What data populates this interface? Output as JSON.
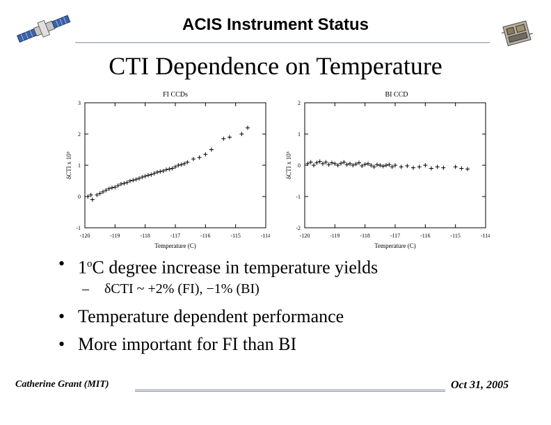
{
  "header": {
    "title": "ACIS Instrument Status"
  },
  "slide": {
    "title": "CTI Dependence on Temperature"
  },
  "chart_data": [
    {
      "type": "scatter",
      "title": "FI CCDs",
      "xlabel": "Temperature (C)",
      "ylabel": "δCTI x 10⁵",
      "xlim": [
        -120,
        -114
      ],
      "ylim": [
        -1,
        3
      ],
      "xticks": [
        "-120",
        "-119",
        "-118",
        "-117",
        "-116",
        "-115",
        "-114"
      ],
      "yticks": [
        "-1",
        "0",
        "1",
        "2",
        "3"
      ],
      "x": [
        -119.9,
        -119.8,
        -119.75,
        -119.6,
        -119.5,
        -119.4,
        -119.3,
        -119.2,
        -119.1,
        -119.0,
        -118.9,
        -118.8,
        -118.7,
        -118.6,
        -118.5,
        -118.4,
        -118.3,
        -118.2,
        -118.1,
        -118.0,
        -117.9,
        -117.8,
        -117.7,
        -117.6,
        -117.5,
        -117.4,
        -117.3,
        -117.2,
        -117.1,
        -117.0,
        -116.9,
        -116.8,
        -116.7,
        -116.6,
        -116.4,
        -116.2,
        -116.0,
        -115.8,
        -115.4,
        -115.2,
        -114.8,
        -114.6
      ],
      "y": [
        0.0,
        0.05,
        -0.1,
        0.05,
        0.1,
        0.15,
        0.2,
        0.25,
        0.28,
        0.3,
        0.35,
        0.4,
        0.42,
        0.45,
        0.5,
        0.52,
        0.55,
        0.58,
        0.62,
        0.65,
        0.68,
        0.7,
        0.74,
        0.78,
        0.8,
        0.82,
        0.86,
        0.88,
        0.9,
        0.95,
        1.0,
        1.02,
        1.05,
        1.1,
        1.2,
        1.25,
        1.35,
        1.5,
        1.85,
        1.9,
        2.0,
        2.2
      ]
    },
    {
      "type": "scatter",
      "title": "BI CCD",
      "xlabel": "Temperature (C)",
      "ylabel": "δCTI x 10⁵",
      "xlim": [
        -120,
        -114
      ],
      "ylim": [
        -2,
        2
      ],
      "xticks": [
        "-120",
        "-119",
        "-118",
        "-117",
        "-116",
        "-115",
        "-114"
      ],
      "yticks": [
        "-2",
        "-1",
        "0",
        "1",
        "2"
      ],
      "x": [
        -119.9,
        -119.8,
        -119.7,
        -119.6,
        -119.5,
        -119.4,
        -119.3,
        -119.2,
        -119.1,
        -119.0,
        -118.9,
        -118.8,
        -118.7,
        -118.6,
        -118.5,
        -118.4,
        -118.3,
        -118.2,
        -118.1,
        -118.0,
        -117.9,
        -117.8,
        -117.7,
        -117.6,
        -117.5,
        -117.4,
        -117.3,
        -117.2,
        -117.1,
        -117.0,
        -116.8,
        -116.6,
        -116.4,
        -116.2,
        -116.0,
        -115.8,
        -115.6,
        -115.4,
        -115.0,
        -114.8,
        -114.6
      ],
      "y": [
        0.05,
        0.1,
        0.0,
        0.08,
        0.12,
        0.05,
        0.1,
        0.02,
        0.08,
        0.05,
        0.0,
        0.06,
        0.1,
        0.02,
        0.05,
        0.0,
        0.04,
        0.08,
        -0.02,
        0.03,
        0.05,
        0.0,
        -0.05,
        0.02,
        0.0,
        -0.03,
        0.0,
        0.02,
        -0.05,
        0.0,
        -0.05,
        -0.02,
        -0.08,
        -0.05,
        0.0,
        -0.1,
        -0.05,
        -0.08,
        -0.05,
        -0.1,
        -0.12
      ]
    }
  ],
  "bullets": {
    "b1_pre": "1",
    "b1_sup": "o",
    "b1_post": "C degree increase in temperature yields",
    "sub1": "δCTI ~  +2% (FI),  −1% (BI)",
    "b2": "Temperature dependent performance",
    "b3": "More important for FI than BI",
    "dot": "•",
    "dash": "–"
  },
  "footer": {
    "author": "Catherine Grant (MIT)",
    "date": "Oct 31, 2005"
  }
}
